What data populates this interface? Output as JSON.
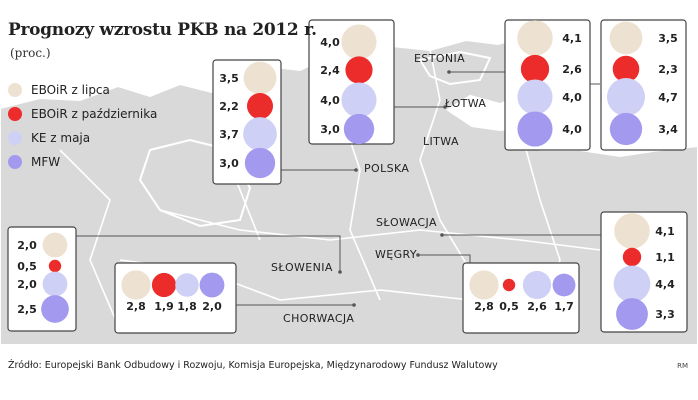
{
  "title": "Prognozy wzrostu PKB na 2012 r.",
  "subtitle": "(proc.)",
  "colors": {
    "map_land": "#d9d9d9",
    "map_border": "#ffffff",
    "box_border": "#444444",
    "leader_line": "#555555",
    "text": "#222222"
  },
  "legend": [
    {
      "key": "ebor_july",
      "label": "EBOiR z lipca",
      "color": "#ede1d1"
    },
    {
      "key": "ebor_october",
      "label": "EBOiR z października",
      "color": "#ec2b2b"
    },
    {
      "key": "ec_may",
      "label": "KE z maja",
      "color": "#cfd0f5"
    },
    {
      "key": "imf",
      "label": "MFW",
      "color": "#a39af0"
    }
  ],
  "chart_data": {
    "type": "bubble-map",
    "title": "Prognozy wzrostu PKB na 2012 r.",
    "unit": "(proc.)",
    "series_order": [
      "ebor_july",
      "ebor_october",
      "ec_may",
      "imf"
    ],
    "countries": [
      {
        "name": "ESTONIA",
        "values": {
          "ebor_july": "4,1",
          "ebor_october": "2,6",
          "ec_may": "4,0",
          "imf": "4,0"
        }
      },
      {
        "name": "ŁOTWA",
        "values": {
          "ebor_july": "3,5",
          "ebor_october": "2,3",
          "ec_may": "4,7",
          "imf": "3,4"
        }
      },
      {
        "name": "LITWA",
        "values": {
          "ebor_july": "4,0",
          "ebor_october": "2,4",
          "ec_may": "4,0",
          "imf": "3,0"
        }
      },
      {
        "name": "POLSKA",
        "values": {
          "ebor_july": "3,5",
          "ebor_october": "2,2",
          "ec_may": "3,7",
          "imf": "3,0"
        }
      },
      {
        "name": "SŁOWACJA",
        "values": {
          "ebor_july": "4,1",
          "ebor_october": "1,1",
          "ec_may": "4,4",
          "imf": "3,3"
        }
      },
      {
        "name": "WĘGRY",
        "values": {
          "ebor_july": "2,8",
          "ebor_october": "0,5",
          "ec_may": "2,6",
          "imf": "1,7"
        }
      },
      {
        "name": "SŁOWENIA",
        "values": {
          "ebor_july": "2,0",
          "ebor_october": "0,5",
          "ec_may": "2,0",
          "imf": "2,5"
        }
      },
      {
        "name": "CHORWACJA",
        "values": {
          "ebor_july": "2,8",
          "ebor_october": "1,9",
          "ec_may": "1,8",
          "imf": "2,0"
        }
      }
    ]
  },
  "source": "Źródło: Europejski Bank Odbudowy i Rozwoju, Komisja Europejska, Międzynarodowy Fundusz Walutowy",
  "credit": "RM"
}
